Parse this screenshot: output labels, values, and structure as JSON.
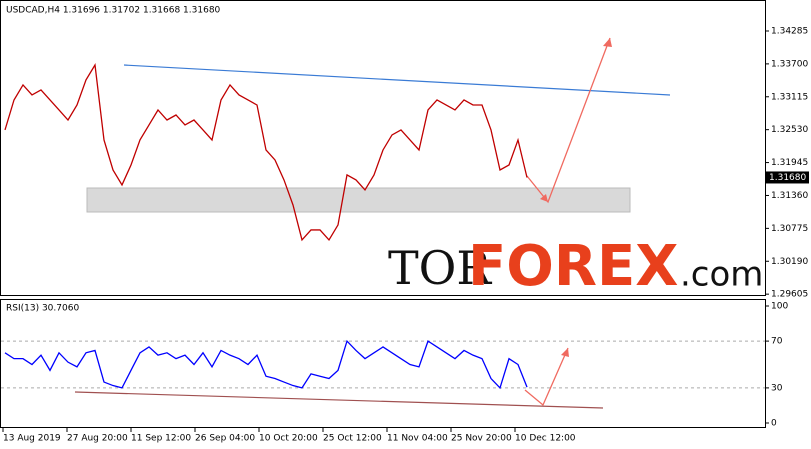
{
  "chart_data": [
    {
      "type": "line",
      "title": "USDCAD,H4 1.31696 1.31702 1.31668 1.31680",
      "color": "#c00000",
      "values": [
        1.32525,
        1.33058,
        1.33325,
        1.33147,
        1.33236,
        1.33058,
        1.3288,
        1.32702,
        1.32969,
        1.33414,
        1.3368,
        1.32347,
        1.31813,
        1.31547,
        1.31902,
        1.32347,
        1.32614,
        1.3288,
        1.32702,
        1.32791,
        1.32614,
        1.32702,
        1.32525,
        1.32347,
        1.33058,
        1.33325,
        1.33147,
        1.33058,
        1.32969,
        1.32169,
        1.31991,
        1.31636,
        1.31191,
        1.30569,
        1.30747,
        1.30747,
        1.30569,
        1.30836,
        1.31725,
        1.31636,
        1.31458,
        1.31725,
        1.32169,
        1.32436,
        1.32525,
        1.32347,
        1.32169,
        1.3288,
        1.33058,
        1.32969,
        1.3288,
        1.33058,
        1.32969,
        1.32969,
        1.32525,
        1.31813,
        1.31902,
        1.32347,
        1.3168
      ],
      "ylim": [
        1.2959,
        1.34836
      ],
      "yticks": [
        1.34285,
        {
          "value": 1.337,
          "label": "1.33700"
        },
        1.33115,
        {
          "value": 1.3253,
          "label": "1.32530"
        },
        1.31945,
        {
          "value": 1.3136,
          "label": "1.31360"
        },
        1.30775,
        {
          "value": 1.3019,
          "label": "1.30190"
        },
        1.29605
      ],
      "last_price": {
        "value": 1.3168,
        "label": "1.31680"
      }
    },
    {
      "type": "line",
      "title": "RSI(13) 30.7060",
      "color": "#0000ff",
      "values": [
        60,
        55,
        55,
        50,
        58,
        45,
        60,
        52,
        48,
        60,
        62,
        35,
        32,
        30,
        45,
        60,
        65,
        58,
        60,
        55,
        58,
        50,
        60,
        48,
        62,
        58,
        55,
        50,
        58,
        40,
        38,
        35,
        32,
        30,
        42,
        40,
        38,
        45,
        70,
        62,
        55,
        60,
        65,
        60,
        55,
        50,
        48,
        70,
        65,
        60,
        55,
        62,
        58,
        55,
        38,
        30,
        55,
        50,
        30.706
      ],
      "ylim": [
        0,
        100
      ],
      "yticks": [
        100,
        70,
        30,
        0
      ],
      "levels": [
        70,
        30
      ]
    }
  ],
  "time_axis": [
    "13 Aug 2019",
    "27 Aug 20:00",
    "11 Sep 12:00",
    "26 Sep 04:00",
    "10 Oct 20:00",
    "25 Oct 12:00",
    "11 Nov 04:00",
    "25 Nov 20:00",
    "10 Dec 12:00"
  ],
  "logo": [
    "TOR",
    "FOREX",
    ".com"
  ]
}
